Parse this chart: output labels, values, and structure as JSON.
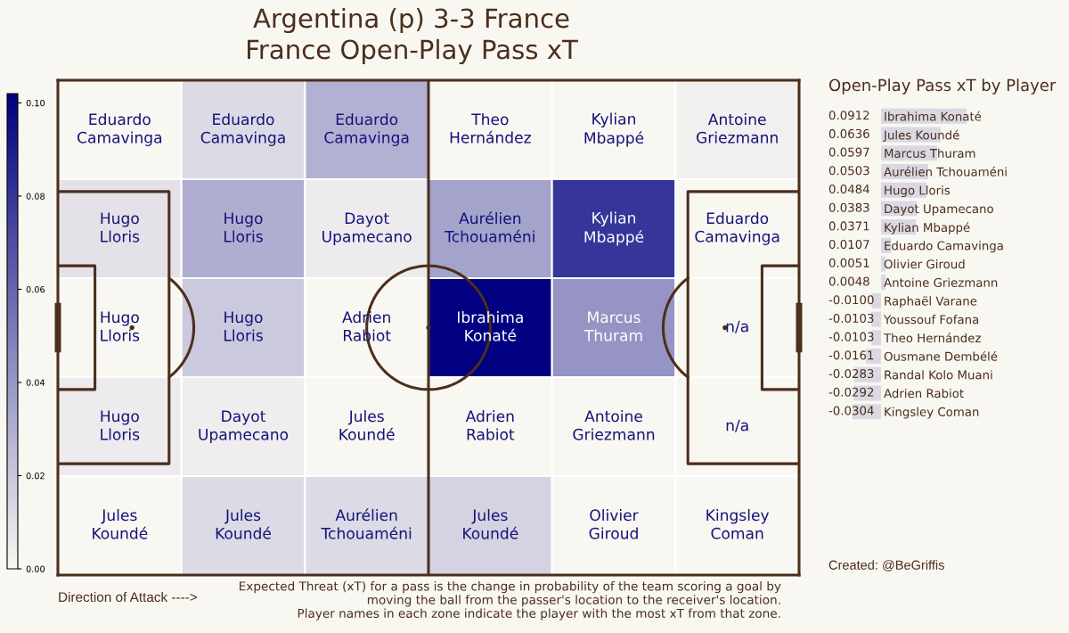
{
  "chart_data": [
    {
      "type": "heatmap",
      "title": "Argentina (p) 3-3 France",
      "subtitle": "France Open-Play Pass xT",
      "categories": [
        null,
        null,
        null,
        null,
        null,
        null
      ],
      "y_categories": [
        null,
        null,
        null,
        null,
        null
      ],
      "cells": [
        [
          0,
          0.012,
          0.029,
          0,
          0,
          0.003
        ],
        [
          0.009,
          0.03,
          0.005,
          0.035,
          0.08,
          0
        ],
        [
          0,
          0.019,
          0,
          0.102,
          0.041,
          null
        ],
        [
          0.005,
          0.004,
          0,
          0,
          0,
          null
        ],
        [
          0,
          0.012,
          0.012,
          0.015,
          0,
          0
        ]
      ],
      "cell_labels": [
        [
          "Eduardo Camavinga",
          "Eduardo Camavinga",
          "Eduardo Camavinga",
          "Theo Hernández",
          "Kylian Mbappé",
          "Antoine Griezmann"
        ],
        [
          "Hugo Lloris",
          "Hugo Lloris",
          "Dayot Upamecano",
          "Aurélien Tchouaméni",
          "Kylian Mbappé",
          "Eduardo Camavinga"
        ],
        [
          "Hugo Lloris",
          "Hugo Lloris",
          "Adrien Rabiot",
          "Ibrahima Konaté",
          "Marcus Thuram",
          "n/a"
        ],
        [
          "Hugo Lloris",
          "Dayot Upamecano",
          "Jules Koundé",
          "Adrien Rabiot",
          "Antoine Griezmann",
          "n/a"
        ],
        [
          "Jules Koundé",
          "Jules Koundé",
          "Aurélien Tchouaméni",
          "Jules Koundé",
          "Olivier Giroud",
          "Kingsley Coman"
        ]
      ],
      "clim": [
        0,
        0.102
      ],
      "cticks": [
        {
          "value": 0,
          "label": "0.00"
        },
        {
          "value": 0.02,
          "label": "0.02"
        },
        {
          "value": 0.04,
          "label": "0.04"
        },
        {
          "value": 0.06,
          "label": "0.06"
        },
        {
          "value": 0.08,
          "label": "0.08"
        },
        {
          "value": 0.1,
          "label": "0.10"
        }
      ],
      "tick_labels": false,
      "annotations": [
        "Direction of Attack ---->",
        "Expected Threat (xT) for a pass is the change in probability of the team scoring a goal by\nmoving the ball from the passer's location to the receiver's location.\nPlayer names in each zone indicate the player with the most xT from that zone."
      ]
    },
    {
      "type": "bar",
      "orientation": "horizontal",
      "title": "Open-Play Pass xT by Player",
      "categories": [
        "Ibrahima Konaté",
        "Jules Koundé",
        "Marcus Thuram",
        "Aurélien Tchouaméni",
        "Hugo Lloris",
        "Dayot Upamecano",
        "Kylian Mbappé",
        "Eduardo Camavinga",
        "Olivier Giroud",
        "Antoine Griezmann",
        "Raphaël Varane",
        "Youssouf Fofana",
        "Theo Hernández",
        "Ousmane Dembélé",
        "Randal Kolo Muani",
        "Adrien Rabiot",
        "Kingsley Coman"
      ],
      "values": [
        0.0912,
        0.0636,
        0.0597,
        0.0503,
        0.0484,
        0.0383,
        0.0371,
        0.0107,
        0.0051,
        0.0048,
        -0.01,
        -0.0103,
        -0.0103,
        -0.0161,
        -0.0283,
        -0.0292,
        -0.0304
      ],
      "value_labels": [
        "0.0912",
        "0.0636",
        "0.0597",
        "0.0503",
        "0.0484",
        "0.0383",
        "0.0371",
        "0.0107",
        "0.0051",
        "0.0048",
        "-0.0100",
        "-0.0103",
        "-0.0103",
        "-0.0161",
        "-0.0283",
        "-0.0292",
        "-0.0304"
      ],
      "color": "#d9d8e3",
      "tick_labels": "y",
      "annotations": [
        "Created: @BeGriffis"
      ]
    }
  ]
}
